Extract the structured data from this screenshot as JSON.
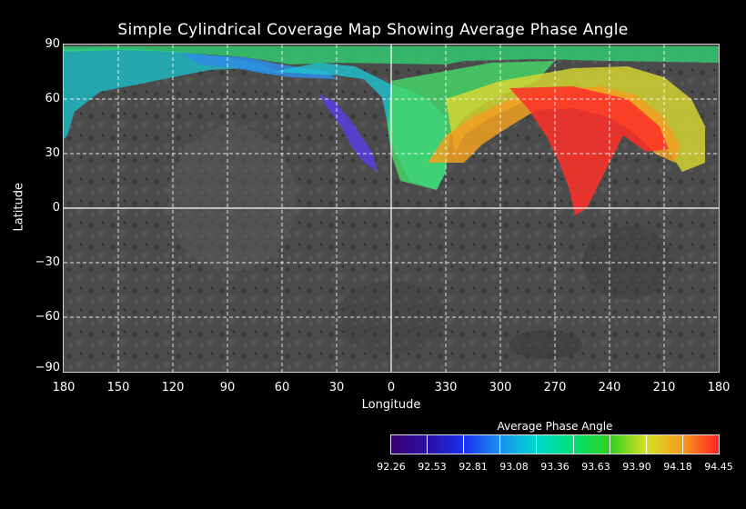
{
  "title": "Simple Cylindrical Coverage Map Showing Average Phase Angle",
  "axes": {
    "ylabel": "Latitude",
    "xlabel": "Longitude",
    "yticks": [
      "90",
      "60",
      "30",
      "0",
      "−30",
      "−60",
      "−90"
    ],
    "xticks": [
      "180",
      "150",
      "120",
      "90",
      "60",
      "30",
      "0",
      "330",
      "300",
      "270",
      "240",
      "210",
      "180"
    ],
    "lat_range": [
      -90,
      90
    ],
    "lon_range_east_to_west": [
      180,
      180
    ],
    "grid": "dashed white"
  },
  "colorbar": {
    "title": "Average Phase Angle",
    "labels": [
      "92.26",
      "92.53",
      "92.81",
      "93.08",
      "93.36",
      "93.63",
      "93.90",
      "94.18",
      "94.45"
    ],
    "colors": [
      "#3a0070",
      "#2020e0",
      "#1a8ff0",
      "#00d8d0",
      "#00e070",
      "#30d020",
      "#d8e020",
      "#f59a20",
      "#ff2020"
    ]
  }
}
